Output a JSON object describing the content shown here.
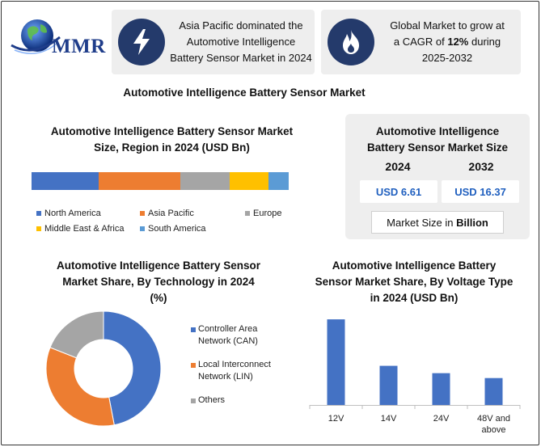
{
  "logo": {
    "text": "MMR"
  },
  "header": {
    "card1": {
      "icon": "lightning-bolt-icon",
      "lines": [
        "Asia Pacific dominated the",
        "Automotive Intelligence",
        "Battery Sensor Market in 2024"
      ]
    },
    "card2": {
      "icon": "flame-icon",
      "line1": "Global Market to grow at",
      "line2_pre": "a CAGR of ",
      "line2_bold": "12%",
      "line2_post": " during",
      "line3": "2025-2032"
    }
  },
  "main_title": "Automotive Intelligence Battery Sensor Market",
  "market_size": {
    "title_line1": "Automotive Intelligence",
    "title_line2": "Battery Sensor Market Size",
    "year1": "2024",
    "year2": "2032",
    "value1": "USD 6.61",
    "value2": "USD 16.37",
    "unit_pre": "Market Size in ",
    "unit_bold": "Billion"
  },
  "colors": {
    "blue": "#4472c4",
    "orange": "#ed7d31",
    "gray": "#a5a5a5",
    "yellow": "#ffc000",
    "lightblue": "#5b9bd5",
    "card_icon_bg": "#243a6b"
  },
  "chart_data": [
    {
      "type": "bar",
      "orientation": "horizontal-stacked",
      "title_line1": "Automotive Intelligence Battery Sensor Market",
      "title_line2": "Size, Region in 2024 (USD Bn)",
      "categories": [
        "2024"
      ],
      "series": [
        {
          "name": "North America",
          "values": [
            0.26
          ],
          "color": "#4472c4"
        },
        {
          "name": "Asia Pacific",
          "values": [
            0.32
          ],
          "color": "#ed7d31"
        },
        {
          "name": "Europe",
          "values": [
            0.19
          ],
          "color": "#a5a5a5"
        },
        {
          "name": "Middle East & Africa",
          "values": [
            0.15
          ],
          "color": "#ffc000"
        },
        {
          "name": "South America",
          "values": [
            0.08
          ],
          "color": "#5b9bd5"
        }
      ],
      "legend": "bottom"
    },
    {
      "type": "pie",
      "style": "donut",
      "title_line1": "Automotive Intelligence Battery Sensor",
      "title_line2": "Market Share, By Technology in 2024",
      "title_line3": "(%)",
      "slices": [
        {
          "label_line1": "Controller Area",
          "label_line2": "Network (CAN)",
          "value": 47,
          "color": "#4472c4"
        },
        {
          "label_line1": "Local Interconnect",
          "label_line2": "Network (LIN)",
          "value": 34,
          "color": "#ed7d31"
        },
        {
          "label_line1": "Others",
          "label_line2": "",
          "value": 19,
          "color": "#a5a5a5"
        }
      ],
      "legend": "right"
    },
    {
      "type": "bar",
      "title_line1": "Automotive Intelligence Battery",
      "title_line2": "Sensor Market Share, By Voltage Type",
      "title_line3": "in 2024 (USD Bn)",
      "categories": [
        "12V",
        "14V",
        "24V",
        "48V and above"
      ],
      "category_lines": [
        [
          "12V"
        ],
        [
          "14V"
        ],
        [
          "24V"
        ],
        [
          "48V and",
          "above"
        ]
      ],
      "values": [
        3.5,
        1.6,
        1.3,
        1.1
      ],
      "ylim": [
        0,
        3.8
      ],
      "color": "#4472c4",
      "grid": false
    }
  ]
}
